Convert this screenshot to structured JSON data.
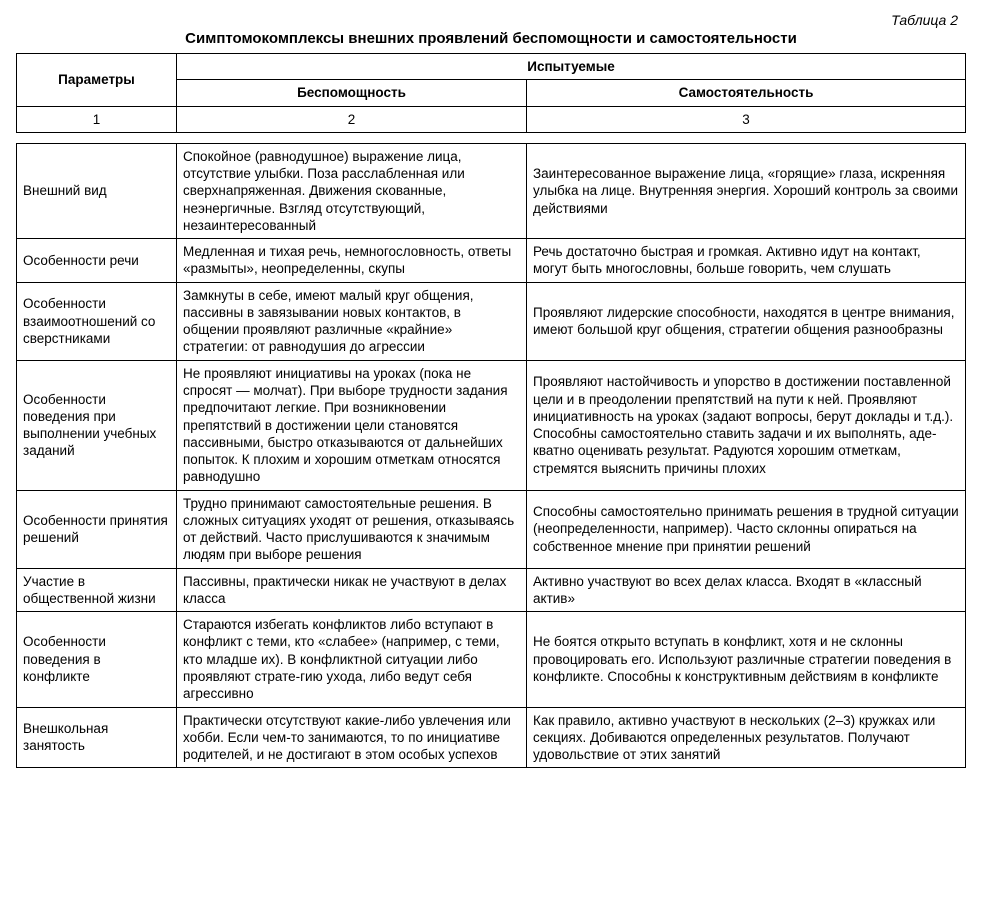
{
  "table_label": "Таблица 2",
  "title": "Симптомокомплексы внешних проявлений беспомощности и самостоятельности",
  "header": {
    "params": "Параметры",
    "subjects": "Испытуемые",
    "col_helpless": "Беспомощность",
    "col_independent": "Самостоятельность",
    "num1": "1",
    "num2": "2",
    "num3": "3"
  },
  "rows": [
    {
      "param": "Внешний вид",
      "helpless": "Спокойное (равнодушное) выражение лица, отсутствие улыбки. Поза расслабленная или сверхнапряженная. Движения скованные, неэнергичные. Взгляд отсутствующий, незаинтересованный",
      "independent": "Заинтересованное выражение лица, «горящие» глаза, искренняя улыбка на лице. Внутренняя энергия. Хороший контроль за своими действиями"
    },
    {
      "param": "Особенности речи",
      "helpless": "Медленная и тихая речь, немногословность, ответы «размыты», неопределенны, скупы",
      "independent": "Речь достаточно быстрая и громкая. Активно идут на контакт, могут быть многословны, больше говорить, чем слушать"
    },
    {
      "param": "Особенности взаимоотношений со сверстниками",
      "helpless": "Замкнуты в себе, имеют малый круг общения, пассивны в завязывании новых контактов, в общении проявляют различные «крайние» стратегии: от равнодушия до агрессии",
      "independent": "Проявляют лидерские способности, находятся в центре внимания, имеют большой круг общения, стратегии общения разнообразны"
    },
    {
      "param": "Особенности поведения при выполнении учебных заданий",
      "helpless": "Не проявляют инициативы на уроках (пока не спросят — молчат). При выборе трудности задания предпочитают легкие. При возникновении препятствий в достижении цели становятся пассивными, быстро отказываются от дальнейших попыток. К плохим и хорошим отметкам относятся равнодушно",
      "independent": "Проявляют настойчивость и упорство в достижении поставленной цели и в преодолении препятствий на пути к ней. Проявляют инициативность на уроках (задают вопросы, берут доклады и т.д.). Способны самостоятельно ставить задачи и их выполнять, аде-кватно оценивать результат. Радуются хорошим отметкам, стремятся выяснить причины плохих"
    },
    {
      "param": "Особенности принятия решений",
      "helpless": "Трудно принимают самостоятельные решения. В сложных ситуациях уходят от решения, отказываясь от действий. Часто прислушиваются к значимым людям при выборе решения",
      "independent": "Способны самостоятельно принимать решения в трудной ситуации (неопределенности, например). Часто склонны опираться на собственное мнение при принятии решений"
    },
    {
      "param": "Участие в общественной жизни",
      "helpless": "Пассивны, практически никак не участвуют в делах класса",
      "independent": "Активно участвуют во всех делах класса. Входят в «классный актив»"
    },
    {
      "param": "Особенности поведения в конфликте",
      "helpless": "Стараются избегать конфликтов либо вступают в конфликт с теми, кто «слабее» (например, с теми, кто младше их). В конфликтной ситуации либо проявляют страте-гию ухода, либо ведут себя агрессивно",
      "independent": "Не боятся открыто вступать в конфликт, хотя и не склонны провоцировать его. Используют различные стратегии поведения в конфликте. Способны к конструктивным действиям в конфликте"
    },
    {
      "param": "Внешкольная занятость",
      "helpless": "Практически отсутствуют какие-либо увлечения или хобби. Если чем-то занимаются, то по инициативе родителей, и не достигают в этом особых успехов",
      "independent": "Как правило, активно участвуют в нескольких (2–3) кружках или секциях. Добиваются определенных результатов. Получают удовольствие от этих занятий"
    }
  ]
}
